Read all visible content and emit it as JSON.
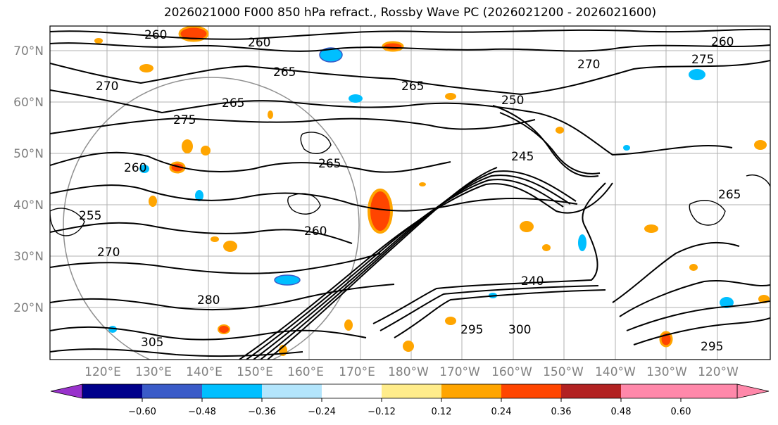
{
  "title": "2026021000 F000 850 hPa refract., Rossby Wave PC (2026021200 - 2026021600)",
  "lat_ticks": [
    "70°N",
    "60°N",
    "50°N",
    "40°N",
    "30°N",
    "20°N"
  ],
  "lon_ticks": [
    "120°E",
    "130°E",
    "140°E",
    "150°E",
    "160°E",
    "170°E",
    "180°W",
    "170°W",
    "160°W",
    "150°W",
    "140°W",
    "130°W",
    "120°W"
  ],
  "colorbar": {
    "colors": [
      "#9932cc",
      "#00008b",
      "#3a5bc8",
      "#00bfff",
      "#b3e5fc",
      "#ffffff",
      "#ffec8b",
      "#ffa500",
      "#ff4500",
      "#b22222",
      "#ff88aa"
    ],
    "tick_labels": [
      "−0.60",
      "−0.48",
      "−0.36",
      "−0.24",
      "−0.12",
      "0.12",
      "0.24",
      "0.36",
      "0.48",
      "0.60"
    ]
  },
  "contour_labels": [
    {
      "text": "260"
    },
    {
      "text": "260"
    },
    {
      "text": "265"
    },
    {
      "text": "270"
    },
    {
      "text": "275"
    },
    {
      "text": "265"
    },
    {
      "text": "270"
    },
    {
      "text": "275"
    },
    {
      "text": "250"
    },
    {
      "text": "265"
    },
    {
      "text": "260"
    },
    {
      "text": "265"
    },
    {
      "text": "260"
    },
    {
      "text": "255"
    },
    {
      "text": "270"
    },
    {
      "text": "280"
    },
    {
      "text": "305"
    },
    {
      "text": "240"
    },
    {
      "text": "295"
    },
    {
      "text": "300"
    },
    {
      "text": "265"
    },
    {
      "text": "295"
    },
    {
      "text": "245"
    },
    {
      "text": "260"
    }
  ]
}
